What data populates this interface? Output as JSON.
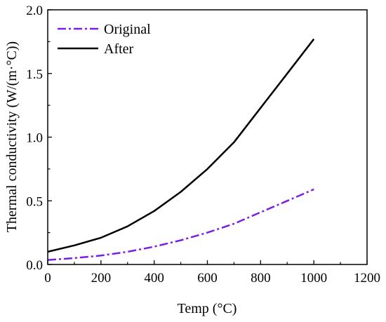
{
  "chart_data": {
    "type": "line",
    "title": "",
    "xlabel": "Temp  (°C)",
    "ylabel": "Thermal conductivity (W/(m·°C))",
    "xlim": [
      0,
      1200
    ],
    "ylim": [
      0,
      2.0
    ],
    "xticks": [
      0,
      200,
      400,
      600,
      800,
      1000,
      1200
    ],
    "yticks": [
      0.0,
      0.5,
      1.0,
      1.5,
      2.0
    ],
    "xtick_labels": [
      "0",
      "200",
      "400",
      "600",
      "800",
      "1000",
      "1200"
    ],
    "ytick_labels": [
      "0.0",
      "0.5",
      "1.0",
      "1.5",
      "2.0"
    ],
    "grid": false,
    "legend_position": "top-left",
    "series": [
      {
        "name": "Original",
        "color": "#7a1ee6",
        "line_style": "dash-dot",
        "x": [
          0,
          100,
          200,
          300,
          400,
          500,
          600,
          700,
          800,
          900,
          1000
        ],
        "y": [
          0.035,
          0.05,
          0.07,
          0.1,
          0.14,
          0.19,
          0.25,
          0.32,
          0.41,
          0.5,
          0.59
        ]
      },
      {
        "name": "After",
        "color": "#000000",
        "line_style": "solid",
        "x": [
          0,
          100,
          200,
          300,
          400,
          500,
          600,
          700,
          800,
          900,
          1000
        ],
        "y": [
          0.1,
          0.15,
          0.21,
          0.3,
          0.42,
          0.57,
          0.75,
          0.96,
          1.23,
          1.5,
          1.77
        ]
      }
    ]
  }
}
